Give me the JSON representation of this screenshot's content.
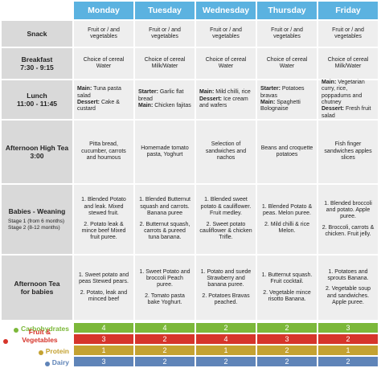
{
  "header": {
    "days": [
      "Monday",
      "Tuesday",
      "Wednesday",
      "Thursday",
      "Friday"
    ]
  },
  "rows": [
    {
      "title": [
        "Snack"
      ],
      "cells": [
        [
          "Fruit or / and vegetables"
        ],
        [
          "Fruit or / and vegetables"
        ],
        [
          "Fruit or / and vegetables"
        ],
        [
          "Fruit or / and vegetables"
        ],
        [
          "Fruit or / and vegetables"
        ]
      ]
    },
    {
      "title": [
        "Breakfast",
        "7:30 - 9:15"
      ],
      "cells": [
        [
          "Choice of cereal Water"
        ],
        [
          "Choice of cereal Milk/Water"
        ],
        [
          "Choice of cereal Water"
        ],
        [
          "Choice of cereal Water"
        ],
        [
          "Choice of cereal Milk/Water"
        ]
      ]
    },
    {
      "title": [
        "Lunch",
        "11:00 - 11:45"
      ],
      "cells": [
        [
          {
            "label": "Main:",
            "text": "Tuna pasta salad"
          },
          {
            "label": "Dessert:",
            "text": "Cake & custard"
          }
        ],
        [
          {
            "label": "Starter:",
            "text": "Garlic flat bread"
          },
          {
            "label": "Main:",
            "text": "Chicken fajitas"
          }
        ],
        [
          {
            "label": "Main:",
            "text": "Mild chilli, rice"
          },
          {
            "label": "Dessert:",
            "text": "Ice cream and wafers"
          }
        ],
        [
          {
            "label": "Starter:",
            "text": "Potatoes bravas"
          },
          {
            "label": "Main:",
            "text": "Spaghetti Bolognaise"
          }
        ],
        [
          {
            "label": "Main:",
            "text": "Vegetarian curry, rice, poppadums and chutney"
          },
          {
            "label": "Dessert:",
            "text": "Fresh fruit salad"
          }
        ]
      ]
    },
    {
      "title": [
        "Afternoon High Tea",
        "3:00"
      ],
      "cells": [
        [
          "Pitta bread, cucumber, carrots and houmous"
        ],
        [
          "Homemade tomato pasta, Yoghurt"
        ],
        [
          "Selection of sandwiches and nachos"
        ],
        [
          "Beans and croquette potatoes"
        ],
        [
          "Fish finger sandwiches apples slices"
        ]
      ]
    },
    {
      "title": [
        "Babies - Weaning"
      ],
      "note": [
        "Stage 1 (from 6 months)",
        "Stage 2 (8-12 months)"
      ],
      "cells": [
        [
          "1. Blended Potato and leak. Mixed stewed fruit.",
          "2. Potato leak & mince beef Mixed fruit puree."
        ],
        [
          "1. Blended Butternut squash and carrots. Banana puree",
          "2. Butternut squash, carrots & pureed tuna banana."
        ],
        [
          "1. Blended sweet potato & cauliflower. Fruit medley.",
          "2. Sweet potato cauliflower & chicken Trifle."
        ],
        [
          "1. Blended Potato & peas. Melon puree.",
          "2. Mild chilli & rice Melon."
        ],
        [
          "1. Blended broccoli and potato. Apple puree.",
          "2. Broccoli, carrots & chicken. Fruit jelly."
        ]
      ]
    },
    {
      "title": [
        "Afternoon Tea",
        "for babies"
      ],
      "cells": [
        [
          "1. Sweet potato and peas Stewed pears.",
          "2. Potato, leak and minced beef"
        ],
        [
          "1. Sweet Potato and broccoli Peach puree.",
          "2. Tomato pasta bake Yoghurt."
        ],
        [
          "1. Potato and suede Strawberry and banana puree.",
          "2. Potatoes Bravas peached."
        ],
        [
          "1. Butternut squash. Fruit cocktail.",
          "2. Vegetable mince risotto Banana."
        ],
        [
          "1. Potatoes and sprouts Banana.",
          "2. Vegetable soup and sandwiches. Apple puree."
        ]
      ]
    }
  ],
  "nutrition": [
    {
      "name": "Carbohydrates",
      "color": "#7cb83a",
      "values": [
        4,
        4,
        2,
        2,
        3
      ]
    },
    {
      "name": "Fruit & Vegetables",
      "color": "#d6352b",
      "values": [
        3,
        2,
        4,
        3,
        2
      ]
    },
    {
      "name": "Protein",
      "color": "#c4a232",
      "values": [
        1,
        2,
        1,
        2,
        1
      ]
    },
    {
      "name": "Dairy",
      "color": "#5f84b8",
      "values": [
        3,
        2,
        2,
        2,
        2
      ]
    }
  ]
}
